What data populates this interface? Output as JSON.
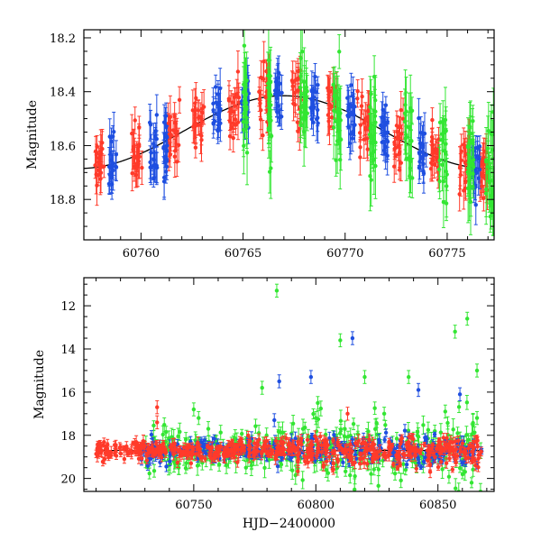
{
  "chart_data": [
    {
      "type": "scatter",
      "title": "",
      "xlabel": "",
      "ylabel": "Magnitude",
      "xlim": [
        60757.2,
        60777.3
      ],
      "ylim": [
        18.95,
        18.17
      ],
      "y_inverted": true,
      "grid": false,
      "xticks": [
        60760,
        60765,
        60770,
        60775
      ],
      "xtick_labels": [
        "60760",
        "60765",
        "60770",
        "60775"
      ],
      "yticks": [
        18.2,
        18.4,
        18.6,
        18.8
      ],
      "ytick_labels": [
        "18.2",
        "18.4",
        "18.6",
        "18.8"
      ],
      "model_curve": {
        "color": "#000000",
        "mean": 18.55,
        "amplitude": 0.135,
        "peak_x": 60767.0,
        "period": 20.0
      },
      "series": [
        {
          "color": "#ff3a2a",
          "segments": [
            [
              60757.7,
              60758.2
            ],
            [
              60759.5,
              60760.1
            ],
            [
              60761.3,
              60761.9
            ],
            [
              60762.5,
              60763.1
            ],
            [
              60764.3,
              60764.8
            ],
            [
              60765.7,
              60766.3
            ],
            [
              60767.4,
              60767.9
            ],
            [
              60769.1,
              60769.6
            ],
            [
              60770.6,
              60771.2
            ],
            [
              60772.4,
              60772.9
            ],
            [
              60774.2,
              60774.6
            ],
            [
              60775.6,
              60776.1
            ],
            [
              60776.6,
              60777.0
            ]
          ]
        },
        {
          "color": "#1f4fe0",
          "segments": [
            [
              60758.4,
              60758.8
            ],
            [
              60760.4,
              60760.8
            ],
            [
              60761.1,
              60761.3
            ],
            [
              60763.5,
              60763.9
            ],
            [
              60764.9,
              60765.3
            ],
            [
              60766.5,
              60766.9
            ],
            [
              60768.3,
              60768.7
            ],
            [
              60770.1,
              60770.5
            ],
            [
              60771.7,
              60772.1
            ],
            [
              60773.6,
              60774.0
            ],
            [
              60776.2,
              60776.6
            ]
          ]
        },
        {
          "color": "#33e633",
          "segments": [
            [
              60765.0,
              60765.2
            ],
            [
              60766.2,
              60766.4
            ],
            [
              60767.8,
              60768.2
            ],
            [
              60769.4,
              60769.8
            ],
            [
              60771.2,
              60771.5
            ],
            [
              60772.9,
              60773.3
            ],
            [
              60774.6,
              60775.0
            ],
            [
              60776.0,
              60776.3
            ],
            [
              60776.9,
              60777.3
            ]
          ]
        }
      ]
    },
    {
      "type": "scatter",
      "title": "",
      "xlabel": "HJD−2400000",
      "ylabel": "Magnitude",
      "xlim": [
        60705,
        60873
      ],
      "ylim": [
        20.6,
        10.7
      ],
      "y_inverted": true,
      "grid": false,
      "xticks": [
        60750,
        60800,
        60850
      ],
      "xtick_labels": [
        "60750",
        "60800",
        "60850"
      ],
      "yticks": [
        12,
        14,
        16,
        18,
        20
      ],
      "ytick_labels": [
        "12",
        "14",
        "16",
        "18",
        "20"
      ],
      "baseline_magnitude": 18.7,
      "baseline_x_range": [
        60710,
        60868
      ],
      "series": [
        {
          "color": "#ff3a2a",
          "x_range": [
            60710,
            60868
          ],
          "outliers": [
            [
              60735,
              16.7
            ],
            [
              60735,
              17.4
            ],
            [
              60813,
              17.0
            ]
          ]
        },
        {
          "color": "#1f4fe0",
          "x_range": [
            60728,
            60868
          ],
          "outliers": [
            [
              60785,
              15.5
            ],
            [
              60798,
              15.3
            ],
            [
              60815,
              13.5
            ],
            [
              60842,
              15.9
            ],
            [
              60859,
              16.1
            ],
            [
              60783,
              17.3
            ]
          ]
        },
        {
          "color": "#33e633",
          "x_range": [
            60730,
            60868
          ],
          "outliers": [
            [
              60784,
              11.3
            ],
            [
              60810,
              13.6
            ],
            [
              60862,
              12.6
            ],
            [
              60857,
              13.2
            ],
            [
              60778,
              15.8
            ],
            [
              60820,
              15.3
            ],
            [
              60838,
              15.3
            ],
            [
              60866,
              15.0
            ],
            [
              60750,
              16.8
            ],
            [
              60752,
              17.2
            ],
            [
              60800,
              17.2
            ],
            [
              60828,
              17.0
            ],
            [
              60853,
              16.9
            ],
            [
              60866,
              17.2
            ]
          ]
        }
      ]
    }
  ]
}
